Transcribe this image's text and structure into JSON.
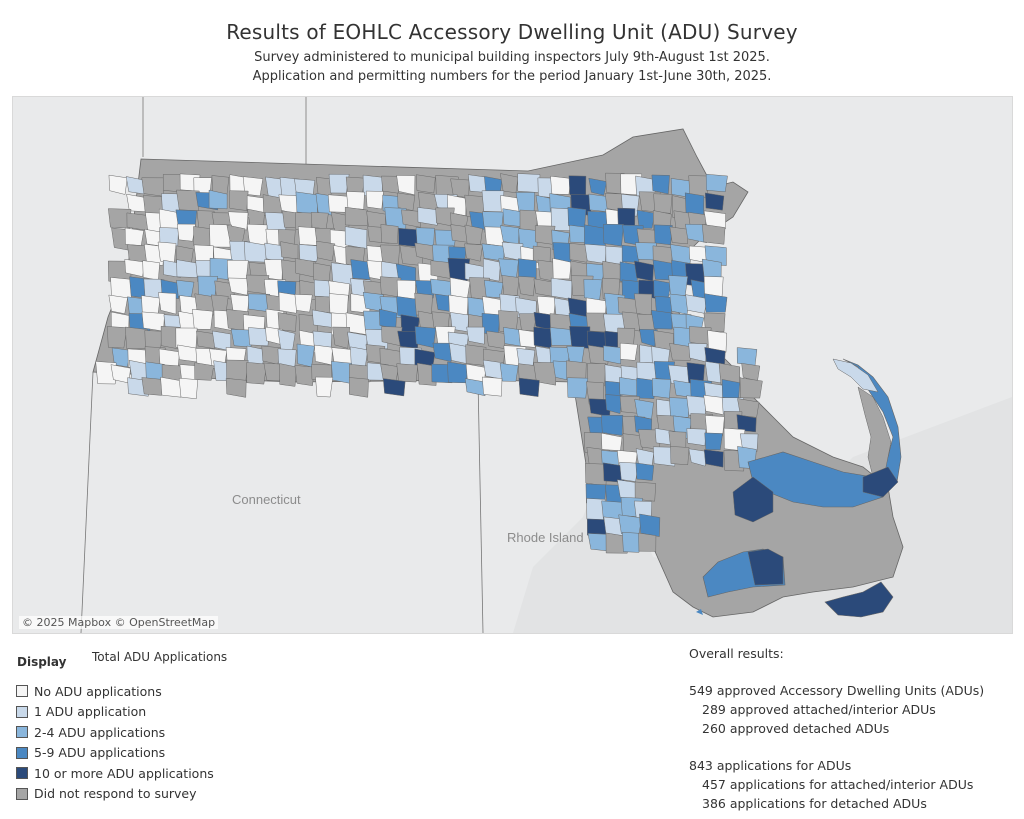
{
  "header": {
    "title": "Results of EOHLC Accessory Dwelling Unit (ADU) Survey",
    "subtitle_line1": "Survey administered to municipal building inspectors July 9th-August 1st 2025.",
    "subtitle_line2": "Application and permitting numbers for the period January 1st-June 30th, 2025."
  },
  "map": {
    "attribution": "© 2025 Mapbox © OpenStreetMap",
    "labels": {
      "connecticut": "Connecticut",
      "rhode_island": "Rhode Island"
    },
    "colors": {
      "none": "#f5f5f5",
      "one": "#c9d9ea",
      "two_four": "#8ab6dc",
      "five_nine": "#4b88c2",
      "ten_plus": "#2b4a7a",
      "no_response": "#a5a5a5",
      "background": "#e9eaeb"
    }
  },
  "display": {
    "label": "Display",
    "value": "Total ADU Applications"
  },
  "legend": [
    {
      "label": "No ADU applications",
      "color": "#f5f5f5"
    },
    {
      "label": "1 ADU application",
      "color": "#c9d9ea"
    },
    {
      "label": "2-4 ADU applications",
      "color": "#8ab6dc"
    },
    {
      "label": "5-9 ADU applications",
      "color": "#4b88c2"
    },
    {
      "label": "10 or more ADU applications",
      "color": "#2b4a7a"
    },
    {
      "label": "Did not respond to survey",
      "color": "#a5a5a5"
    }
  ],
  "results": {
    "heading": "Overall results:",
    "approved_total": "549 approved Accessory Dwelling Units (ADUs)",
    "approved_attached": "289 approved attached/interior ADUs",
    "approved_detached": "260 approved detached ADUs",
    "apps_total": "843 applications for ADUs",
    "apps_attached": "457 applications for attached/interior ADUs",
    "apps_detached": "386 applications for detached ADUs"
  }
}
